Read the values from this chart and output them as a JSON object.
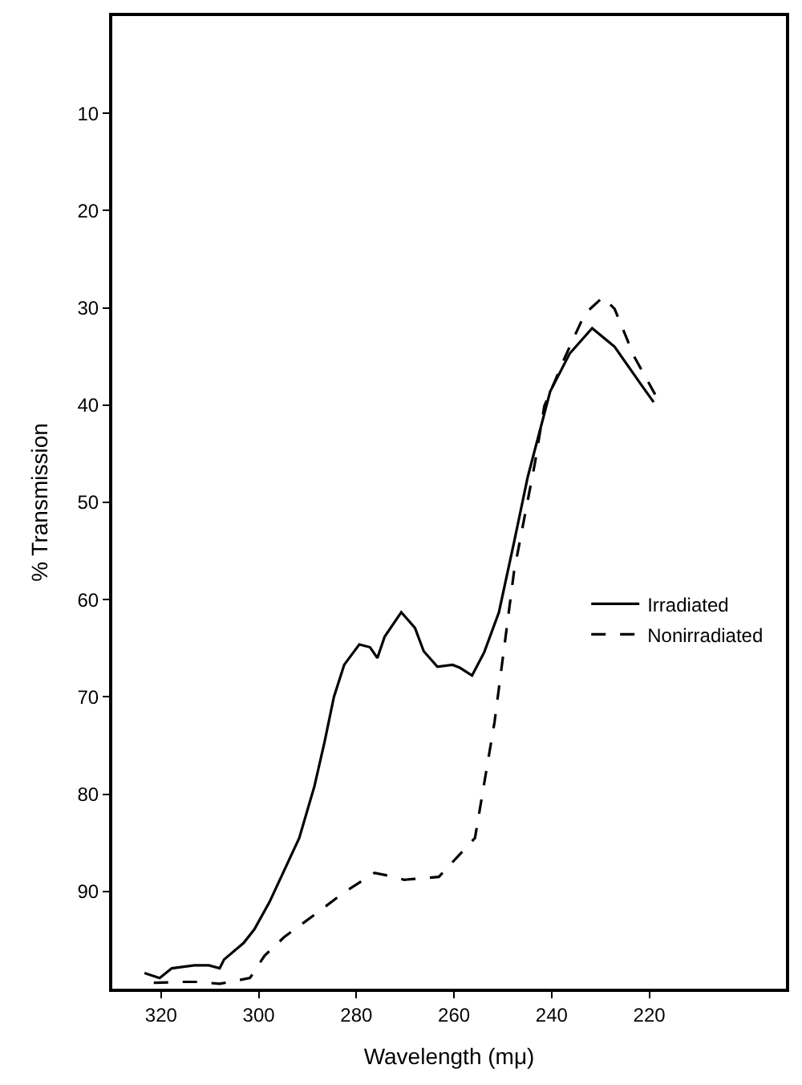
{
  "chart_data": {
    "type": "line",
    "xlabel": "Wavelength (mμ)",
    "ylabel": "% Transmission",
    "xlim": [
      330,
      192
    ],
    "ylim": [
      100,
      0
    ],
    "xticks": [
      320,
      300,
      280,
      260,
      240,
      220
    ],
    "yticks": [
      10,
      20,
      30,
      40,
      50,
      60,
      70,
      80,
      90
    ],
    "legend": "right",
    "marker": "none",
    "series": [
      {
        "name": "Irradiated",
        "color": "#000000",
        "line_style": "solid",
        "x": [
          323.4,
          320.3,
          317.8,
          313.2,
          310.2,
          308.0,
          307.1,
          303.1,
          300.9,
          297.8,
          291.7,
          288.6,
          286.5,
          284.6,
          282.5,
          279.4,
          277.2,
          275.7,
          274.2,
          270.8,
          268.0,
          266.2,
          263.4,
          260.3,
          258.8,
          256.3,
          253.8,
          250.8,
          247.7,
          244.9,
          242.5,
          240.3,
          236.3,
          231.7,
          227.1,
          221.8,
          219.1
        ],
        "values": [
          98.4,
          98.9,
          97.9,
          97.6,
          97.6,
          97.9,
          97.0,
          95.3,
          93.9,
          91.1,
          84.5,
          79.2,
          74.6,
          70.0,
          66.7,
          64.6,
          64.9,
          66.0,
          63.8,
          61.3,
          62.9,
          65.3,
          66.9,
          66.7,
          67.0,
          67.8,
          65.4,
          61.3,
          54.1,
          47.4,
          42.8,
          38.6,
          34.7,
          32.1,
          34.0,
          37.8,
          39.7
        ]
      },
      {
        "name": "Nonirradiated",
        "color": "#000000",
        "line_style": "dashed",
        "x": [
          321.5,
          316.3,
          312.3,
          308.0,
          301.8,
          298.8,
          294.8,
          288.6,
          282.5,
          276.3,
          273.2,
          270.2,
          263.1,
          255.7,
          251.7,
          247.7,
          243.4,
          241.5,
          237.2,
          233.2,
          229.5,
          227.1,
          223.1,
          218.8
        ],
        "values": [
          99.4,
          99.3,
          99.3,
          99.5,
          98.9,
          96.6,
          94.7,
          92.4,
          90.1,
          88.1,
          88.4,
          88.8,
          88.5,
          84.5,
          72.6,
          57.1,
          45.9,
          40.1,
          35.0,
          30.6,
          28.9,
          30.1,
          35.0,
          38.9
        ]
      }
    ]
  }
}
